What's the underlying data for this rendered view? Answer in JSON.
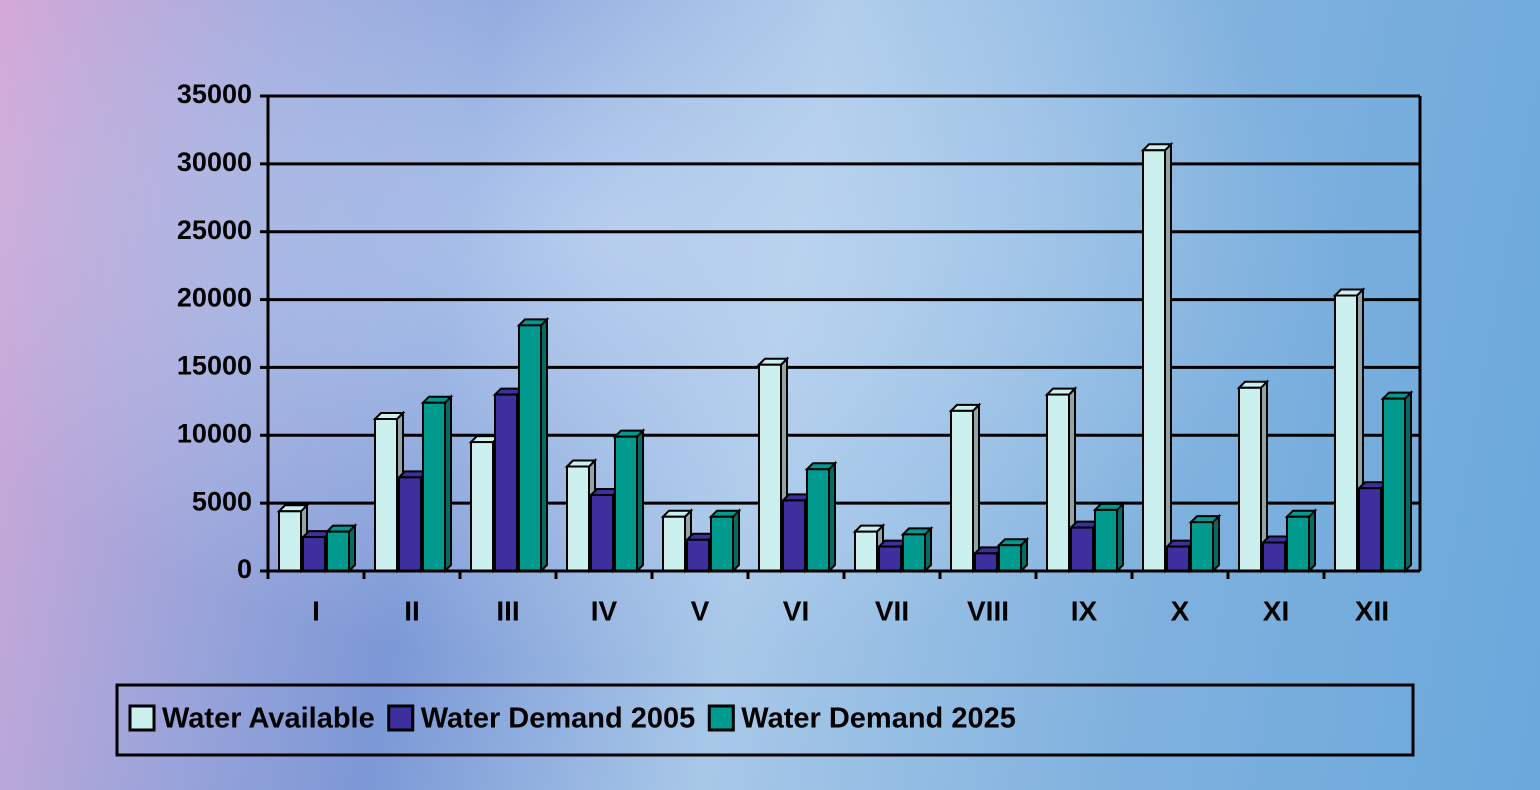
{
  "chart_data": {
    "type": "bar",
    "categories": [
      "I",
      "II",
      "III",
      "IV",
      "V",
      "VI",
      "VII",
      "VIII",
      "IX",
      "X",
      "XI",
      "XII"
    ],
    "series": [
      {
        "name": "Water Available",
        "color": "#ccf0ee",
        "values": [
          4400,
          11200,
          9500,
          7700,
          4000,
          15200,
          2900,
          11800,
          13000,
          31000,
          13500,
          20300
        ]
      },
      {
        "name": "Water Demand 2005",
        "color": "#3e2f9e",
        "values": [
          2500,
          6900,
          13000,
          5600,
          2300,
          5200,
          1800,
          1300,
          3200,
          1800,
          2100,
          6100
        ]
      },
      {
        "name": "Water Demand 2025",
        "color": "#009a8e",
        "values": [
          2900,
          12400,
          18100,
          9900,
          4000,
          7500,
          2700,
          1900,
          4500,
          3600,
          4000,
          12700
        ]
      }
    ],
    "ylim": [
      0,
      35000
    ],
    "yticks": [
      0,
      5000,
      10000,
      15000,
      20000,
      25000,
      30000,
      35000
    ],
    "grid": true,
    "legend": "bottom"
  }
}
